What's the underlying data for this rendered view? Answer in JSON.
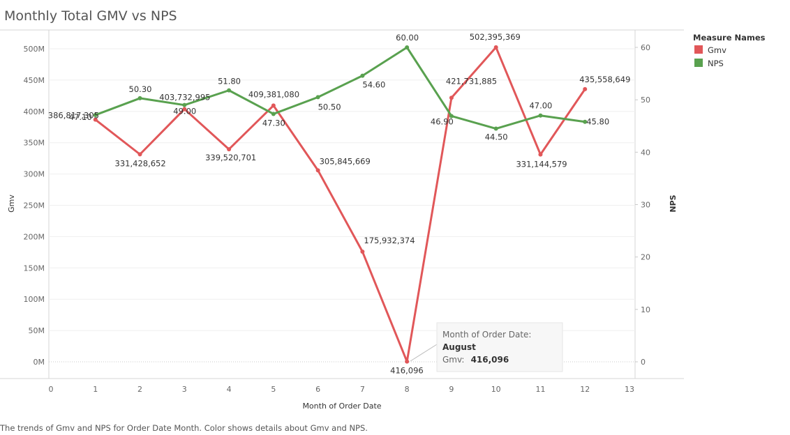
{
  "chart_data": {
    "type": "line",
    "title": "Monthly Total GMV vs NPS",
    "xlabel": "Month of Order Date",
    "ylabel_left": "Gmv",
    "ylabel_right": "NPS",
    "x_ticks": [
      "0",
      "1",
      "2",
      "3",
      "4",
      "5",
      "6",
      "7",
      "8",
      "9",
      "10",
      "11",
      "12",
      "13"
    ],
    "xlim": [
      0,
      13
    ],
    "ylim_left": [
      0,
      520000000
    ],
    "ylim_right": [
      0,
      62
    ],
    "y_left_ticks": [
      {
        "value": 0,
        "label": "0M"
      },
      {
        "value": 50000000,
        "label": "50M"
      },
      {
        "value": 100000000,
        "label": "100M"
      },
      {
        "value": 150000000,
        "label": "150M"
      },
      {
        "value": 200000000,
        "label": "200M"
      },
      {
        "value": 250000000,
        "label": "250M"
      },
      {
        "value": 300000000,
        "label": "300M"
      },
      {
        "value": 350000000,
        "label": "350M"
      },
      {
        "value": 400000000,
        "label": "400M"
      },
      {
        "value": 450000000,
        "label": "450M"
      },
      {
        "value": 500000000,
        "label": "500M"
      }
    ],
    "y_right_ticks": [
      {
        "value": 0,
        "label": "0"
      },
      {
        "value": 10,
        "label": "10"
      },
      {
        "value": 20,
        "label": "20"
      },
      {
        "value": 30,
        "label": "30"
      },
      {
        "value": 40,
        "label": "40"
      },
      {
        "value": 50,
        "label": "50"
      },
      {
        "value": 60,
        "label": "60"
      }
    ],
    "x": [
      1,
      2,
      3,
      4,
      5,
      6,
      7,
      8,
      9,
      10,
      11,
      12
    ],
    "series": [
      {
        "name": "Gmv",
        "axis": "left",
        "color": "#e15759",
        "values": [
          386817305,
          331428652,
          403732995,
          339520701,
          409381080,
          305845669,
          175932374,
          416096,
          421731885,
          502395369,
          331144579,
          435558649
        ],
        "labels": [
          "386,817,305",
          "331,428,652",
          "403,732,995",
          "339,520,701",
          "409,381,080",
          "305,845,669",
          "175,932,374",
          "416,096",
          "421,731,885",
          "502,395,369",
          "331,144,579",
          "435,558,649"
        ]
      },
      {
        "name": "NPS",
        "axis": "right",
        "color": "#59a14f",
        "values": [
          47.1,
          50.3,
          49.0,
          51.8,
          47.3,
          50.5,
          54.6,
          60.0,
          46.9,
          44.5,
          47.0,
          45.8
        ],
        "labels": [
          "47.10",
          "50.30",
          "49.00",
          "51.80",
          "47.30",
          "50.50",
          "54.60",
          "60.00",
          "46.90",
          "44.50",
          "47.00",
          "45.80"
        ]
      }
    ],
    "legend": {
      "title": "Measure Names",
      "position": "top-right",
      "items": [
        {
          "label": "Gmv",
          "color": "#e15759"
        },
        {
          "label": "NPS",
          "color": "#59a14f"
        }
      ]
    },
    "tooltip": {
      "line1": "Month of Order Date:",
      "line2": "August",
      "line3_label": "Gmv:",
      "line3_value": "416,096"
    },
    "caption": "The trends of Gmv and NPS for Order Date Month.  Color shows details about Gmv and NPS."
  }
}
